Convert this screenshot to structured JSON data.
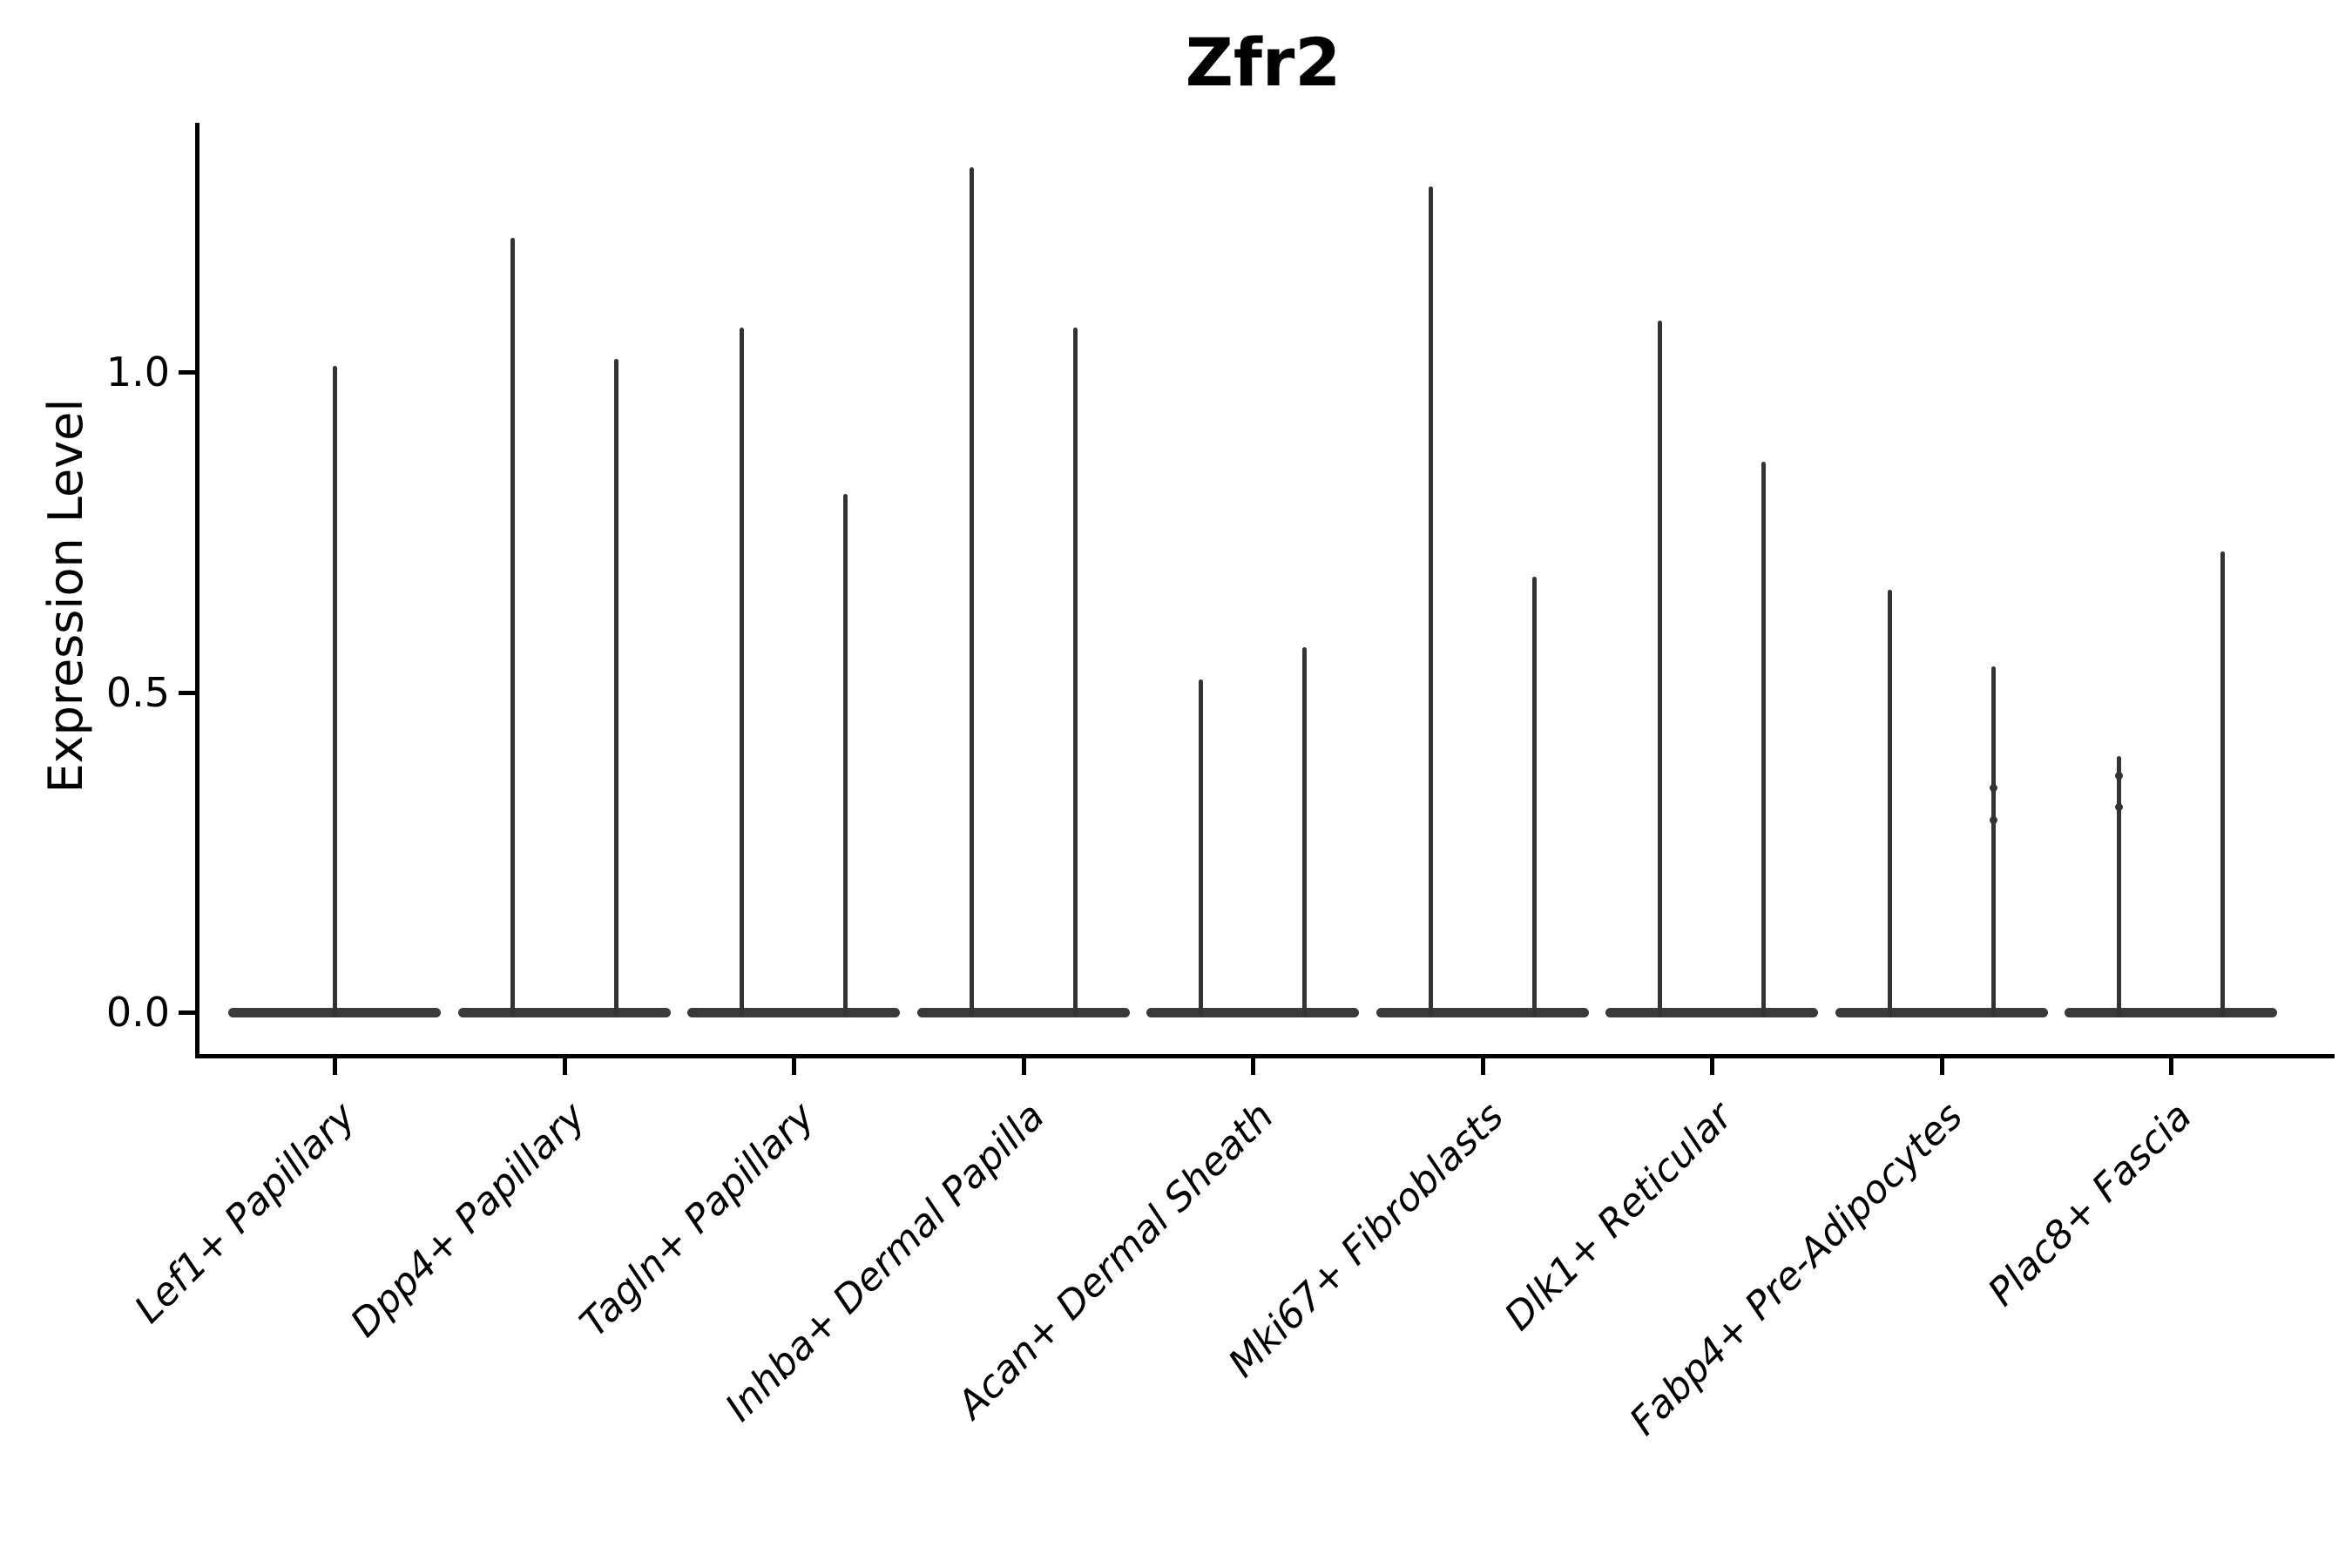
{
  "chart_data": {
    "type": "violin",
    "title": "Zfr2",
    "xlabel": "",
    "ylabel": "Expression Level",
    "yticks": [
      0.0,
      0.5,
      1.0
    ],
    "ytick_labels": [
      "0.0",
      "0.5",
      "1.0"
    ],
    "ylim": [
      -0.07,
      1.39
    ],
    "legend": "none",
    "grid": false,
    "style_notes": "black hairline violins collapsed at zero with thin spikes to max expression; single-gene violin plot across fibroblast subtypes",
    "categories": [
      "Lef1+ Papillary",
      "Dpp4+ Papillary",
      "Tagln+ Papillary",
      "Inhba+ Dermal Papilla",
      "Acan+ Dermal Sheath",
      "Mki67+ Fibroblasts",
      "Dlk1+ Reticular",
      "Fabp4+ Pre-Adipocytes",
      "Plac8+ Fascia"
    ],
    "violins": [
      {
        "category": "Lef1+ Papillary",
        "spike_maxima": [
          1.01
        ]
      },
      {
        "category": "Dpp4+ Papillary",
        "spike_maxima": [
          1.21,
          1.02
        ]
      },
      {
        "category": "Tagln+ Papillary",
        "spike_maxima": [
          1.07,
          0.81
        ]
      },
      {
        "category": "Inhba+ Dermal Papilla",
        "spike_maxima": [
          1.32,
          1.07
        ]
      },
      {
        "category": "Acan+ Dermal Sheath",
        "spike_maxima": [
          0.52,
          0.57
        ]
      },
      {
        "category": "Mki67+ Fibroblasts",
        "spike_maxima": [
          1.29,
          0.68
        ]
      },
      {
        "category": "Dlk1+ Reticular",
        "spike_maxima": [
          1.08,
          0.86
        ]
      },
      {
        "category": "Fabp4+ Pre-Adipocytes",
        "spike_maxima": [
          0.66,
          0.54
        ],
        "extra_bumps": {
          "spike_index": 1,
          "values": [
            0.35,
            0.3
          ]
        }
      },
      {
        "category": "Plac8+ Fascia",
        "spike_maxima": [
          0.4,
          0.72
        ],
        "extra_bumps": {
          "spike_index": 0,
          "values": [
            0.37,
            0.32
          ]
        }
      }
    ],
    "ink_color": "#000000",
    "violin_color": "#333333"
  }
}
